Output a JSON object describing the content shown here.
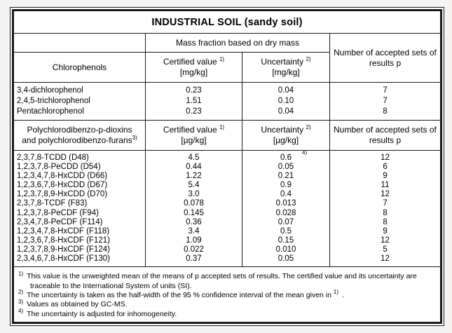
{
  "title": "INDUSTRIAL SOIL (sandy soil)",
  "mass_fraction_header": "Mass fraction based on dry mass",
  "accepted_header": "Number of accepted sets of results p",
  "sections": [
    {
      "name": "Chlorophenols",
      "certified_label": "Certified value",
      "certified_sup": "1)",
      "certified_unit": "[mg/kg]",
      "uncertainty_label": "Uncertainty",
      "uncertainty_sup": "2)",
      "uncertainty_unit": "[mg/kg]",
      "rows": [
        {
          "name": "3,4-dichlorophenol",
          "value": "0.23",
          "uncertainty": "0.04",
          "p": "7"
        },
        {
          "name": "2,4,5-trichlorophenol",
          "value": "1.51",
          "uncertainty": "0.10",
          "p": "7"
        },
        {
          "name": "Pentachlorophenol",
          "value": "0.23",
          "uncertainty": "0.04",
          "p": "8"
        }
      ]
    },
    {
      "name_line1": "Polychlorodibenzo-p-dioxins",
      "name_line2": "and polychlorodibenzo-furans",
      "name_sup": "3)",
      "certified_label": "Certified value",
      "certified_sup": "1)",
      "certified_unit": "[µg/kg]",
      "uncertainty_label": "Uncertainty",
      "uncertainty_sup": "2)",
      "uncertainty_unit": "[µg/kg]",
      "rows": [
        {
          "name": "2,3,7,8-TCDD (D48)",
          "value": "4.5",
          "uncertainty": "0.6",
          "uncertainty_sup": "4)",
          "p": "12"
        },
        {
          "name": "1,2,3,7,8-PeCDD (D54)",
          "value": "0.44",
          "uncertainty": "0.05",
          "p": "6"
        },
        {
          "name": "1,2,3,4,7,8-HxCDD (D66)",
          "value": "1.22",
          "uncertainty": "0.21",
          "p": "9"
        },
        {
          "name": "1,2,3,6,7,8-HxCDD (D67)",
          "value": "5.4",
          "uncertainty": "0.9",
          "p": "11"
        },
        {
          "name": "1,2,3,7,8,9-HxCDD (D70)",
          "value": "3.0",
          "uncertainty": "0.4",
          "p": "12"
        },
        {
          "name": "2,3,7,8-TCDF (F83)",
          "value": "0.078",
          "uncertainty": "0.013",
          "p": "7"
        },
        {
          "name": "1,2,3,7,8-PeCDF (F94)",
          "value": "0.145",
          "uncertainty": "0.028",
          "p": "8"
        },
        {
          "name": "2,3,4,7,8-PeCDF (F114)",
          "value": "0.36",
          "uncertainty": "0.07",
          "p": "8"
        },
        {
          "name": "1,2,3,4,7,8-HxCDF (F118)",
          "value": "3.4",
          "uncertainty": "0.5",
          "p": "9"
        },
        {
          "name": "1,2,3,6,7,8-HxCDF (F121)",
          "value": "1.09",
          "uncertainty": "0.15",
          "p": "12"
        },
        {
          "name": "1,2,3,7,8,9-HxCDF (F124)",
          "value": "0.022",
          "uncertainty": "0.010",
          "p": "5"
        },
        {
          "name": "2,3,4,6,7,8-HxCDF (F130)",
          "value": "0.37",
          "uncertainty": "0.05",
          "p": "12"
        }
      ]
    }
  ],
  "footnotes": [
    {
      "sup": "1)",
      "line1": "This value is the unweighted mean of the means of p accepted sets of results. The certified value and its uncertainty are",
      "line2": "traceable to the International System of units (SI)."
    },
    {
      "sup": "2)",
      "pre": "The uncertainty is taken as the half-width of the 95 % confidence interval of the mean given in ",
      "ref_sup": "1)",
      "post": "."
    },
    {
      "sup": "3)",
      "text": "Values as obtained by GC-MS."
    },
    {
      "sup": "4)",
      "text": "The uncertainty is adjusted for inhomogeneity."
    }
  ]
}
